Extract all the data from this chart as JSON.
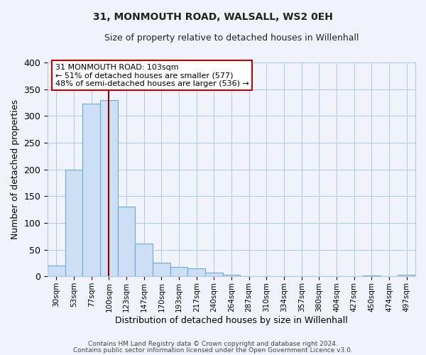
{
  "title": "31, MONMOUTH ROAD, WALSALL, WS2 0EH",
  "subtitle": "Size of property relative to detached houses in Willenhall",
  "xlabel": "Distribution of detached houses by size in Willenhall",
  "ylabel": "Number of detached properties",
  "bin_labels": [
    "30sqm",
    "53sqm",
    "77sqm",
    "100sqm",
    "123sqm",
    "147sqm",
    "170sqm",
    "193sqm",
    "217sqm",
    "240sqm",
    "264sqm",
    "287sqm",
    "310sqm",
    "334sqm",
    "357sqm",
    "380sqm",
    "404sqm",
    "427sqm",
    "450sqm",
    "474sqm",
    "497sqm"
  ],
  "bar_heights": [
    20,
    200,
    323,
    330,
    130,
    62,
    25,
    17,
    15,
    7,
    3,
    0,
    0,
    0,
    0,
    0,
    0,
    0,
    1,
    0,
    3
  ],
  "bar_color": "#ccdff5",
  "bar_edge_color": "#6aaad4",
  "ylim": [
    0,
    400
  ],
  "yticks": [
    0,
    50,
    100,
    150,
    200,
    250,
    300,
    350,
    400
  ],
  "vline_x_index": 3.0,
  "vline_color": "#8b0000",
  "annotation_box_title": "31 MONMOUTH ROAD: 103sqm",
  "annotation_line1": "← 51% of detached houses are smaller (577)",
  "annotation_line2": "48% of semi-detached houses are larger (536) →",
  "annotation_box_edge_color": "#cc0000",
  "footer_line1": "Contains HM Land Registry data © Crown copyright and database right 2024.",
  "footer_line2": "Contains public sector information licensed under the Open Government Licence v3.0.",
  "background_color": "#f0f4fa",
  "plot_background": "#f0f4fa",
  "grid_color": "#b0c8e8"
}
